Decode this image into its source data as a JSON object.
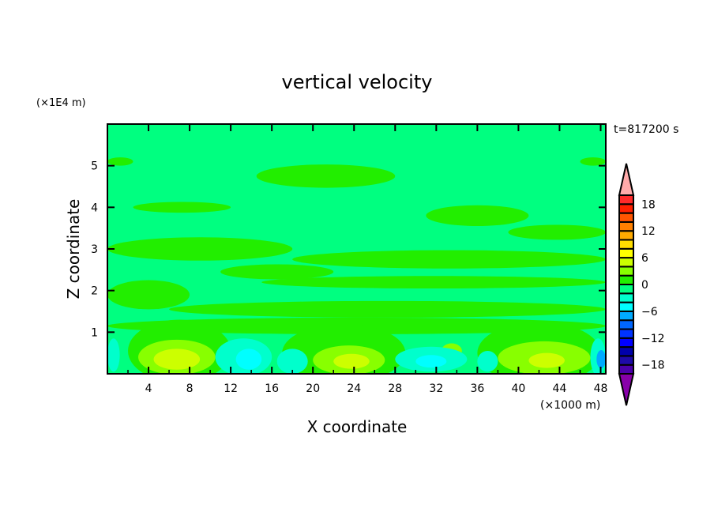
{
  "chart_data": {
    "type": "heatmap",
    "title": "vertical velocity",
    "xlabel": "X coordinate",
    "ylabel": "Z coordinate",
    "x_unit": "(×1000 m)",
    "y_unit": "(×1E4 m)",
    "time_label": "t=817200 s",
    "xlim": [
      0,
      48.5
    ],
    "ylim": [
      0,
      6
    ],
    "x_ticks": [
      4,
      8,
      12,
      16,
      20,
      24,
      28,
      32,
      36,
      40,
      44,
      48
    ],
    "y_ticks": [
      1,
      2,
      3,
      4,
      5
    ],
    "colorbar": {
      "levels": [
        -20,
        -18,
        -16,
        -14,
        -12,
        -10,
        -8,
        -6,
        -4,
        -2,
        0,
        2,
        4,
        6,
        8,
        10,
        12,
        14,
        16,
        18,
        20
      ],
      "tick_labels": [
        "18",
        "12",
        "6",
        "0",
        "−6",
        "−12",
        "−18"
      ],
      "tick_values": [
        18,
        12,
        6,
        0,
        -6,
        -12,
        -18
      ],
      "colors": [
        "#4b00aa",
        "#1e0aa8",
        "#0000aa",
        "#0000ff",
        "#0033ff",
        "#0066ff",
        "#00aaff",
        "#00ffff",
        "#00ffcc",
        "#00ff80",
        "#22ee00",
        "#88ff00",
        "#ccff00",
        "#ffff00",
        "#ffdd00",
        "#ffaa00",
        "#ff8000",
        "#ff5500",
        "#ff2000",
        "#ff2a2a"
      ],
      "over_color": "#ffaaaa",
      "under_color": "#8800aa",
      "extend": "both"
    },
    "background_level": [
      -2,
      0
    ],
    "features": [
      {
        "x0": 0,
        "x1": 2.5,
        "z": 5.1,
        "h": 0.1,
        "value": 1
      },
      {
        "x0": 46,
        "x1": 48.5,
        "z": 5.1,
        "h": 0.1,
        "value": 1
      },
      {
        "x0": 14.5,
        "x1": 28,
        "z": 4.75,
        "h": 0.28,
        "value": 1
      },
      {
        "x0": 2.5,
        "x1": 12,
        "z": 4.0,
        "h": 0.13,
        "value": 1
      },
      {
        "x0": 31,
        "x1": 41,
        "z": 3.8,
        "h": 0.25,
        "value": 1
      },
      {
        "x0": 39,
        "x1": 48.5,
        "z": 3.4,
        "h": 0.18,
        "value": 1
      },
      {
        "x0": 0,
        "x1": 18,
        "z": 3.0,
        "h": 0.28,
        "value": 1
      },
      {
        "x0": 18,
        "x1": 48.5,
        "z": 2.75,
        "h": 0.22,
        "value": 1
      },
      {
        "x0": 11,
        "x1": 22,
        "z": 2.45,
        "h": 0.18,
        "value": 1
      },
      {
        "x0": 0,
        "x1": 8,
        "z": 1.9,
        "h": 0.35,
        "value": 1
      },
      {
        "x0": 15,
        "x1": 48.5,
        "z": 2.2,
        "h": 0.15,
        "value": 1
      },
      {
        "x0": 6,
        "x1": 48.5,
        "z": 1.55,
        "h": 0.2,
        "value": 1
      },
      {
        "x0": 0,
        "x1": 48.5,
        "z": 1.15,
        "h": 0.2,
        "value": 1
      },
      {
        "x0": 2,
        "x1": 12,
        "z": 0.55,
        "h": 0.75,
        "value": 1
      },
      {
        "x0": 17,
        "x1": 29,
        "z": 0.5,
        "h": 0.7,
        "value": 1
      },
      {
        "x0": 36,
        "x1": 48,
        "z": 0.5,
        "h": 0.75,
        "value": 1
      },
      {
        "x0": 3,
        "x1": 10.5,
        "z": 0.4,
        "h": 0.42,
        "value": 3
      },
      {
        "x0": 4.5,
        "x1": 9,
        "z": 0.35,
        "h": 0.25,
        "value": 5
      },
      {
        "x0": 20,
        "x1": 27,
        "z": 0.33,
        "h": 0.35,
        "value": 3
      },
      {
        "x0": 22,
        "x1": 25.5,
        "z": 0.3,
        "h": 0.18,
        "value": 5
      },
      {
        "x0": 38,
        "x1": 47,
        "z": 0.38,
        "h": 0.4,
        "value": 3
      },
      {
        "x0": 41,
        "x1": 44.5,
        "z": 0.32,
        "h": 0.18,
        "value": 5
      },
      {
        "x0": 32.5,
        "x1": 34.5,
        "z": 0.55,
        "h": 0.18,
        "value": 3
      },
      {
        "x0": 0,
        "x1": 1.2,
        "z": 0.45,
        "h": 0.4,
        "value": -3
      },
      {
        "x0": 10.5,
        "x1": 16,
        "z": 0.4,
        "h": 0.45,
        "value": -3
      },
      {
        "x0": 12.5,
        "x1": 15,
        "z": 0.35,
        "h": 0.25,
        "value": -5
      },
      {
        "x0": 16.5,
        "x1": 19.5,
        "z": 0.3,
        "h": 0.3,
        "value": -3
      },
      {
        "x0": 28,
        "x1": 35,
        "z": 0.35,
        "h": 0.3,
        "value": -3
      },
      {
        "x0": 30,
        "x1": 33,
        "z": 0.3,
        "h": 0.15,
        "value": -5
      },
      {
        "x0": 36,
        "x1": 38,
        "z": 0.3,
        "h": 0.25,
        "value": -3
      },
      {
        "x0": 47,
        "x1": 48.5,
        "z": 0.4,
        "h": 0.45,
        "value": -3
      },
      {
        "x0": 47.6,
        "x1": 48.5,
        "z": 0.35,
        "h": 0.22,
        "value": -7
      }
    ]
  }
}
